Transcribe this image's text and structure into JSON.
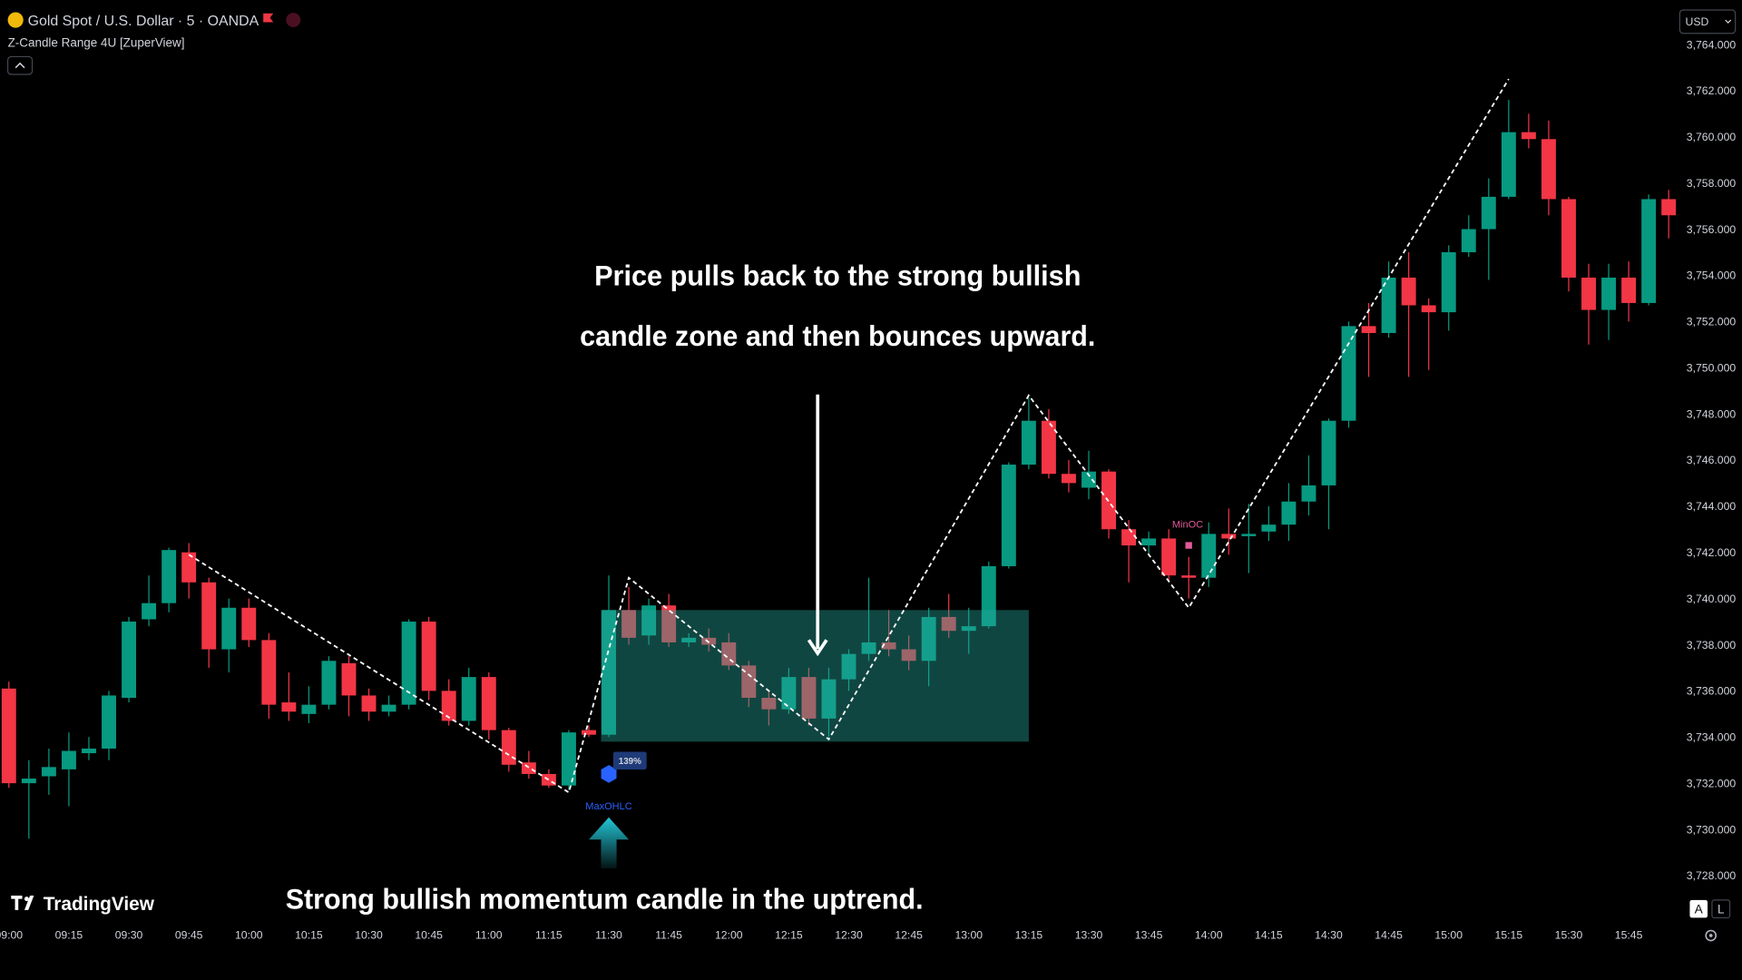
{
  "chart_data": {
    "type": "candlestick",
    "title": "Gold Spot / U.S. Dollar · 5 · OANDA",
    "indicator": "Z-Candle Range 4U [ZuperView]",
    "currency": "USD",
    "brand": "TradingView",
    "scale_buttons": [
      "A",
      "L"
    ],
    "categories": [
      "09:00",
      null,
      null,
      "09:15",
      null,
      null,
      "09:30",
      null,
      null,
      "09:45",
      null,
      null,
      "10:00",
      null,
      null,
      "10:15",
      null,
      null,
      "10:30",
      null,
      null,
      "10:45",
      null,
      null,
      "11:00",
      null,
      null,
      "11:15",
      null,
      null,
      "11:30",
      null,
      null,
      "11:45",
      null,
      null,
      "12:00",
      null,
      null,
      "12:15",
      null,
      null,
      "12:30",
      null,
      null,
      "12:45",
      null,
      null,
      "13:00",
      null,
      null,
      "13:15",
      null,
      null,
      "13:30",
      null,
      null,
      "13:45",
      null,
      null,
      "14:00",
      null,
      null,
      "14:15",
      null,
      null,
      "14:30",
      null,
      null,
      "14:45",
      null,
      null,
      "15:00",
      null,
      null,
      "15:15",
      null,
      null,
      "15:30",
      null,
      null,
      "15:45",
      null,
      null
    ],
    "open": [
      3736.1,
      3732.0,
      3732.3,
      3732.6,
      3733.3,
      3733.5,
      3735.7,
      3739.1,
      3739.8,
      3742.0,
      3740.7,
      3737.8,
      3739.6,
      3738.2,
      3735.5,
      3735.0,
      3735.4,
      3737.2,
      3735.8,
      3735.1,
      3735.4,
      3739.0,
      3736.0,
      3734.7,
      3736.6,
      3734.3,
      3732.9,
      3732.4,
      3731.9,
      3734.3,
      3734.1,
      3739.5,
      3738.4,
      3739.7,
      3738.1,
      3738.3,
      3738.1,
      3737.1,
      3735.7,
      3735.2,
      3736.6,
      3734.8,
      3736.5,
      3737.6,
      3738.1,
      3737.8,
      3737.3,
      3739.2,
      3738.6,
      3738.8,
      3741.4,
      3745.8,
      3747.7,
      3745.4,
      3744.8,
      3745.5,
      3743.0,
      3742.3,
      3742.6,
      3741.0,
      3740.9,
      3742.8,
      3742.7,
      3742.9,
      3743.2,
      3744.2,
      3744.9,
      3747.7,
      3751.8,
      3751.5,
      3753.9,
      3752.7,
      3752.4,
      3755.0,
      3756.0,
      3757.4,
      3760.2,
      3759.9,
      3757.3,
      3753.9,
      3752.5,
      3753.9,
      3752.8,
      3757.3
    ],
    "high": [
      3736.4,
      3733.0,
      3733.5,
      3734.2,
      3734.0,
      3736.0,
      3739.2,
      3741.0,
      3742.2,
      3742.4,
      3740.9,
      3740.0,
      3740.0,
      3738.5,
      3736.8,
      3736.2,
      3737.5,
      3737.5,
      3736.1,
      3735.8,
      3739.1,
      3739.2,
      3736.5,
      3737.0,
      3736.8,
      3734.4,
      3733.4,
      3732.6,
      3734.3,
      3734.5,
      3741.0,
      3740.5,
      3740.0,
      3740.2,
      3738.5,
      3738.7,
      3738.5,
      3737.3,
      3736.0,
      3737.0,
      3737.0,
      3737.0,
      3737.8,
      3740.9,
      3739.5,
      3738.4,
      3739.6,
      3740.2,
      3739.6,
      3741.6,
      3745.9,
      3748.7,
      3748.2,
      3746.0,
      3746.4,
      3745.6,
      3743.4,
      3742.9,
      3743.0,
      3741.8,
      3743.3,
      3743.9,
      3744.1,
      3744.0,
      3745.0,
      3746.2,
      3747.8,
      3752.0,
      3752.8,
      3754.6,
      3755.0,
      3753.0,
      3755.3,
      3756.6,
      3758.2,
      3761.6,
      3761.0,
      3760.7,
      3757.4,
      3754.5,
      3754.5,
      3754.6,
      3757.5,
      3757.7
    ],
    "low": [
      3731.8,
      3729.6,
      3731.5,
      3731.0,
      3733.0,
      3733.0,
      3735.5,
      3738.8,
      3739.4,
      3740.0,
      3737.0,
      3736.8,
      3737.9,
      3734.8,
      3734.7,
      3734.6,
      3735.2,
      3734.9,
      3734.7,
      3734.9,
      3735.2,
      3735.6,
      3734.5,
      3734.5,
      3733.9,
      3732.5,
      3732.2,
      3731.8,
      3731.7,
      3734.0,
      3734.0,
      3738.0,
      3738.0,
      3737.9,
      3737.9,
      3737.7,
      3736.9,
      3735.3,
      3734.5,
      3735.0,
      3734.5,
      3734.0,
      3736.0,
      3737.3,
      3737.5,
      3736.9,
      3736.2,
      3738.3,
      3737.6,
      3738.7,
      3741.3,
      3745.6,
      3745.2,
      3744.6,
      3744.3,
      3742.6,
      3740.7,
      3741.9,
      3740.7,
      3740.0,
      3740.5,
      3741.9,
      3741.1,
      3742.5,
      3742.5,
      3743.6,
      3743.0,
      3747.4,
      3749.6,
      3751.3,
      3749.6,
      3749.9,
      3751.6,
      3754.8,
      3753.8,
      3757.3,
      3759.5,
      3756.6,
      3753.3,
      3751.0,
      3751.2,
      3752.0,
      3752.7,
      3755.6
    ],
    "close": [
      3732.0,
      3732.2,
      3732.7,
      3733.4,
      3733.5,
      3735.8,
      3739.0,
      3739.8,
      3742.1,
      3740.7,
      3737.8,
      3739.6,
      3738.2,
      3735.4,
      3735.1,
      3735.4,
      3737.3,
      3735.8,
      3735.1,
      3735.4,
      3739.0,
      3736.0,
      3734.7,
      3736.6,
      3734.3,
      3732.8,
      3732.4,
      3731.9,
      3734.2,
      3734.1,
      3739.5,
      3738.3,
      3739.7,
      3738.1,
      3738.3,
      3738.0,
      3737.1,
      3735.7,
      3735.2,
      3736.6,
      3734.8,
      3736.5,
      3737.6,
      3738.1,
      3737.8,
      3737.3,
      3739.2,
      3738.6,
      3738.8,
      3741.4,
      3745.8,
      3747.7,
      3745.4,
      3745.0,
      3745.5,
      3743.0,
      3742.3,
      3742.6,
      3741.0,
      3740.9,
      3742.8,
      3742.6,
      3742.8,
      3743.2,
      3744.2,
      3744.9,
      3747.7,
      3751.8,
      3751.5,
      3753.9,
      3752.7,
      3752.4,
      3755.0,
      3756.0,
      3757.4,
      3760.2,
      3759.9,
      3757.3,
      3753.9,
      3752.5,
      3753.9,
      3752.8,
      3757.3,
      3756.6
    ],
    "up_color": "#089981",
    "down_color": "#f23645",
    "ylim": [
      3726,
      3766
    ],
    "yticks": [
      {
        "value": 3728,
        "label": "3,728.000"
      },
      {
        "value": 3730,
        "label": "3,730.000"
      },
      {
        "value": 3732,
        "label": "3,732.000"
      },
      {
        "value": 3734,
        "label": "3,734.000"
      },
      {
        "value": 3736,
        "label": "3,736.000"
      },
      {
        "value": 3738,
        "label": "3,738.000"
      },
      {
        "value": 3740,
        "label": "3,740.000"
      },
      {
        "value": 3742,
        "label": "3,742.000"
      },
      {
        "value": 3744,
        "label": "3,744.000"
      },
      {
        "value": 3746,
        "label": "3,746.000"
      },
      {
        "value": 3748,
        "label": "3,748.000"
      },
      {
        "value": 3750,
        "label": "3,750.000"
      },
      {
        "value": 3752,
        "label": "3,752.000"
      },
      {
        "value": 3754,
        "label": "3,754.000"
      },
      {
        "value": 3756,
        "label": "3,756.000"
      },
      {
        "value": 3758,
        "label": "3,758.000"
      },
      {
        "value": 3760,
        "label": "3,760.000"
      },
      {
        "value": 3762,
        "label": "3,762.000"
      },
      {
        "value": 3764,
        "label": "3,764.000"
      }
    ],
    "zigzag": {
      "x": [
        "09:45",
        "11:20",
        "11:35",
        "12:25",
        "13:15",
        "13:55",
        "15:15"
      ],
      "values": [
        3741.9,
        3731.6,
        3740.9,
        3733.9,
        3748.8,
        3739.6,
        3762.5
      ],
      "color": "#ffffff"
    },
    "zone": {
      "x": [
        "11:30",
        "13:15"
      ],
      "values": [
        3733.8,
        3739.5
      ],
      "color": "#26a69a"
    },
    "markers": [
      {
        "x": "11:30",
        "value": 3732.4,
        "label": "MaxOHLC",
        "percent_label": "139%",
        "color": "#2962ff"
      },
      {
        "x": "13:55",
        "value": 3742.3,
        "label": "MinOC",
        "color": "#e05a9a"
      }
    ],
    "annotations": [
      {
        "lines": [
          "Price pulls back to the strong bullish",
          "candle zone and then bounces upward."
        ]
      },
      {
        "lines": [
          "Strong bullish momentum candle in the uptrend."
        ]
      }
    ]
  }
}
